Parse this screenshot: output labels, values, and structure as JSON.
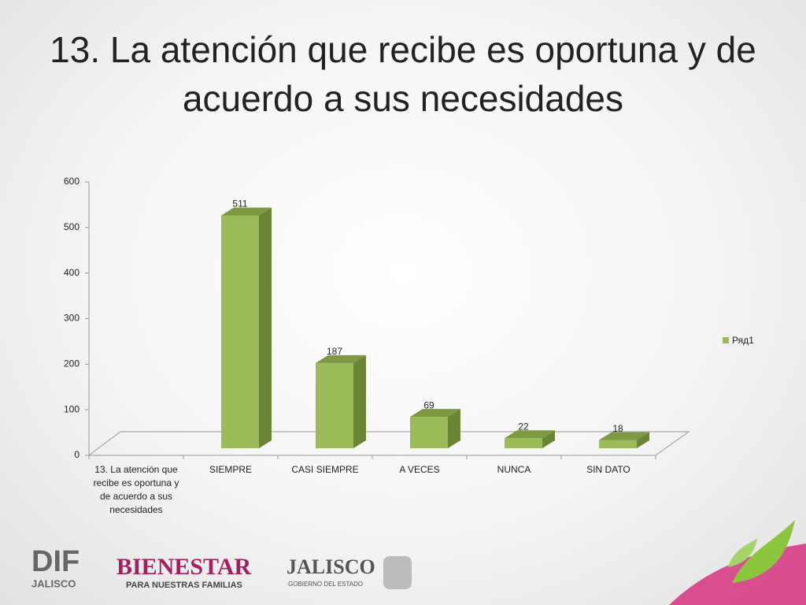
{
  "chart_data": {
    "type": "bar3d",
    "title": "13. La atención que recibe es oportuna y de acuerdo a sus necesidades",
    "categories": [
      "13. La atención que recibe es oportuna y de acuerdo a sus necesidades",
      "SIEMPRE",
      "CASI SIEMPRE",
      "A VECES",
      "NUNCA",
      "SIN DATO"
    ],
    "series": [
      {
        "name": "Ряд1",
        "color": "#9bbb59",
        "values": [
          null,
          511,
          187,
          69,
          22,
          18
        ]
      }
    ],
    "ylim": [
      0,
      600
    ],
    "yticks": [
      0,
      100,
      200,
      300,
      400,
      500,
      600
    ],
    "legend": "right",
    "grid": false
  },
  "logos": {
    "dif": "DIF",
    "dif_sub": "JALISCO",
    "bienestar": "BIENESTAR",
    "bienestar_sub": "PARA NUESTRAS FAMILIAS",
    "jalisco": "JALISCO",
    "jalisco_sub": "GOBIERNO DEL ESTADO"
  }
}
